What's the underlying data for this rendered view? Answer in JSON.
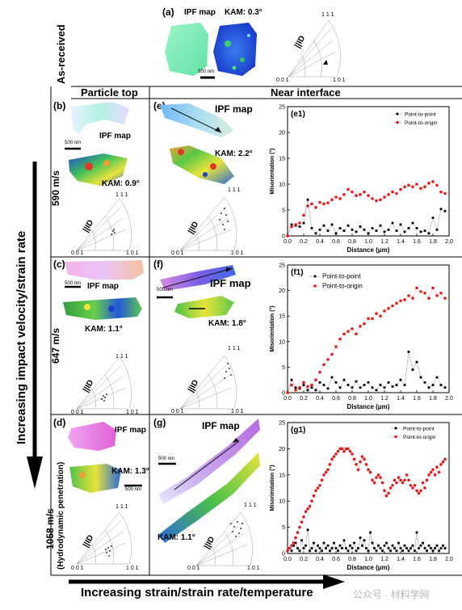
{
  "header": {
    "as_received": "As-received",
    "col_particle_top": "Particle top",
    "col_near_interface": "Near interface",
    "row_590": "590 m/s",
    "row_647": "647 m/s",
    "row_1058": "1058 m/s",
    "row_1058_sub": "(Hydrodynamic penetration)",
    "vertical_arrow": "Increasing impact velocity/strain rate",
    "bottom_arrow": "Increasing strain/strain rate/temperature",
    "watermark": "公众号 · 材料学网"
  },
  "panels": {
    "a": {
      "tag": "(a)",
      "ipf": "IPF map",
      "kam": "KAM: 0.3°",
      "scale": "500 nm"
    },
    "b": {
      "tag": "(b)",
      "ipf": "IPF map",
      "kam": "KAM: 0.9°",
      "scale": "500 nm"
    },
    "c": {
      "tag": "(c)",
      "ipf": "IPF map",
      "kam": "KAM: 1.1°",
      "scale": "500 nm"
    },
    "d": {
      "tag": "(d)",
      "ipf": "IPF map",
      "kam": "KAM: 1.3°",
      "scale": "500 nm"
    },
    "e": {
      "tag": "(e)",
      "ipf": "IPF map",
      "kam": "KAM: 2.2°"
    },
    "f": {
      "tag": "(f)",
      "ipf": "IPF map",
      "kam": "KAM: 1.8°",
      "scale": "500 nm"
    },
    "g": {
      "tag": "(g)",
      "ipf": "IPF map",
      "kam": "KAM: 1.1°",
      "scale": "500 nm"
    }
  },
  "pole": {
    "t111": "1 1 1",
    "t001": "0 0 1",
    "t101": "1 0 1",
    "id": "||ID"
  },
  "colors": {
    "point_to_point": "#000000",
    "point_to_origin": "#e21b1b"
  },
  "chart_data": [
    {
      "type": "scatter",
      "tag": "(e1)",
      "xlabel": "Distance (μm)",
      "ylabel": "Misorientation (°)",
      "xlim": [
        0,
        2.0
      ],
      "ylim": [
        0,
        25
      ],
      "xticks": [
        "0.0",
        "0.2",
        "0.4",
        "0.6",
        "0.8",
        "1.0",
        "1.2",
        "1.4",
        "1.6",
        "1.8",
        "2.0"
      ],
      "yticks": [
        "0",
        "5",
        "10",
        "15",
        "20",
        "25"
      ],
      "legend": "top-right",
      "series": [
        {
          "name": "Point-to-point",
          "x": [
            0.0,
            0.05,
            0.1,
            0.15,
            0.2,
            0.25,
            0.3,
            0.35,
            0.4,
            0.45,
            0.5,
            0.55,
            0.6,
            0.65,
            0.7,
            0.75,
            0.8,
            0.85,
            0.9,
            0.95,
            1.0,
            1.05,
            1.1,
            1.15,
            1.2,
            1.25,
            1.3,
            1.35,
            1.4,
            1.45,
            1.5,
            1.55,
            1.6,
            1.65,
            1.7,
            1.75,
            1.8,
            1.85,
            1.9,
            1.95
          ],
          "y": [
            0.0,
            2.2,
            2.0,
            1.8,
            2.5,
            7.0,
            1.5,
            0.5,
            1.2,
            2.0,
            1.0,
            2.2,
            0.5,
            1.5,
            1.0,
            2.0,
            1.2,
            0.8,
            1.8,
            1.2,
            0.5,
            1.5,
            1.0,
            2.0,
            0.8,
            1.2,
            2.5,
            1.0,
            2.2,
            0.8,
            1.5,
            2.5,
            1.5,
            0.8,
            1.0,
            0.5,
            3.5,
            1.2,
            5.2,
            4.8
          ]
        },
        {
          "name": "Point-to-origin",
          "x": [
            0.0,
            0.05,
            0.1,
            0.15,
            0.2,
            0.25,
            0.3,
            0.35,
            0.4,
            0.45,
            0.5,
            0.55,
            0.6,
            0.65,
            0.7,
            0.75,
            0.8,
            0.85,
            0.9,
            0.95,
            1.0,
            1.05,
            1.1,
            1.15,
            1.2,
            1.25,
            1.3,
            1.35,
            1.4,
            1.45,
            1.5,
            1.55,
            1.6,
            1.65,
            1.7,
            1.75,
            1.8,
            1.85,
            1.9,
            1.95
          ],
          "y": [
            0.0,
            1.8,
            2.2,
            2.5,
            4.0,
            5.8,
            6.2,
            5.5,
            6.5,
            6.2,
            6.4,
            7.0,
            7.5,
            7.2,
            8.0,
            9.0,
            8.5,
            7.8,
            8.0,
            8.5,
            7.8,
            7.2,
            6.8,
            7.0,
            7.5,
            8.0,
            8.5,
            8.2,
            9.0,
            9.5,
            9.8,
            9.5,
            10.0,
            9.2,
            9.5,
            10.2,
            10.5,
            9.8,
            8.5,
            8.2
          ]
        }
      ]
    },
    {
      "type": "scatter",
      "tag": "(f1)",
      "xlabel": "Distance (μm)",
      "ylabel": "Misorientation (°)",
      "xlim": [
        0,
        2.0
      ],
      "ylim": [
        0,
        25
      ],
      "xticks": [
        "0.0",
        "0.2",
        "0.4",
        "0.6",
        "0.8",
        "1.0",
        "1.2",
        "1.4",
        "1.6",
        "1.8",
        "2.0"
      ],
      "yticks": [
        "0",
        "5",
        "10",
        "15",
        "20",
        "25"
      ],
      "legend": "top-left",
      "series": [
        {
          "name": "Point-to-point",
          "x": [
            0.0,
            0.05,
            0.1,
            0.15,
            0.2,
            0.25,
            0.3,
            0.35,
            0.4,
            0.45,
            0.5,
            0.55,
            0.6,
            0.65,
            0.7,
            0.75,
            0.8,
            0.85,
            0.9,
            0.95,
            1.0,
            1.05,
            1.1,
            1.15,
            1.2,
            1.25,
            1.3,
            1.35,
            1.4,
            1.45,
            1.5,
            1.55,
            1.6,
            1.65,
            1.7,
            1.75,
            1.8,
            1.85,
            1.9,
            1.95
          ],
          "y": [
            0.0,
            2.5,
            1.0,
            0.8,
            1.5,
            0.5,
            1.0,
            0.5,
            2.0,
            1.5,
            0.8,
            3.0,
            2.0,
            1.0,
            2.5,
            1.5,
            1.0,
            2.2,
            1.0,
            1.5,
            2.0,
            1.0,
            0.5,
            1.5,
            1.0,
            2.0,
            1.2,
            1.5,
            2.5,
            1.5,
            8.0,
            4.5,
            6.0,
            3.0,
            2.0,
            1.0,
            1.5,
            3.0,
            1.5,
            1.0
          ]
        },
        {
          "name": "Point-to-origin",
          "x": [
            0.0,
            0.05,
            0.1,
            0.15,
            0.2,
            0.25,
            0.3,
            0.35,
            0.4,
            0.45,
            0.5,
            0.55,
            0.6,
            0.65,
            0.7,
            0.75,
            0.8,
            0.85,
            0.9,
            0.95,
            1.0,
            1.05,
            1.1,
            1.15,
            1.2,
            1.25,
            1.3,
            1.35,
            1.4,
            1.45,
            1.5,
            1.55,
            1.6,
            1.65,
            1.7,
            1.75,
            1.8,
            1.85,
            1.9,
            1.95
          ],
          "y": [
            0.0,
            1.5,
            0.5,
            1.0,
            2.0,
            1.2,
            1.5,
            2.5,
            4.0,
            5.5,
            6.5,
            7.5,
            9.0,
            10.5,
            11.5,
            12.0,
            12.5,
            11.5,
            13.0,
            13.5,
            14.5,
            14.5,
            15.5,
            15.0,
            16.0,
            16.5,
            17.0,
            17.5,
            18.0,
            18.2,
            19.0,
            18.5,
            20.5,
            19.8,
            19.5,
            18.5,
            20.5,
            19.0,
            19.5,
            18.5
          ]
        }
      ]
    },
    {
      "type": "scatter",
      "tag": "(g1)",
      "xlabel": "Distance (μm)",
      "ylabel": "Misorientation (°)",
      "xlim": [
        0,
        2.0
      ],
      "ylim": [
        0,
        25
      ],
      "xticks": [
        "0.0",
        "0.2",
        "0.4",
        "0.6",
        "0.8",
        "1.0",
        "1.2",
        "1.4",
        "1.6",
        "1.8",
        "2.0"
      ],
      "yticks": [
        "0",
        "5",
        "10",
        "15",
        "20",
        "25"
      ],
      "legend": "top-right",
      "series": [
        {
          "name": "Point-to-point",
          "x": [
            0.0,
            0.025,
            0.05,
            0.075,
            0.1,
            0.125,
            0.15,
            0.175,
            0.2,
            0.225,
            0.25,
            0.275,
            0.3,
            0.325,
            0.35,
            0.375,
            0.4,
            0.425,
            0.45,
            0.475,
            0.5,
            0.525,
            0.55,
            0.575,
            0.6,
            0.625,
            0.65,
            0.675,
            0.7,
            0.725,
            0.75,
            0.775,
            0.8,
            0.825,
            0.85,
            0.875,
            0.9,
            0.925,
            0.95,
            0.975,
            1.0,
            1.025,
            1.05,
            1.075,
            1.1,
            1.125,
            1.15,
            1.175,
            1.2,
            1.225,
            1.25,
            1.275,
            1.3,
            1.325,
            1.35,
            1.375,
            1.4,
            1.425,
            1.45,
            1.475,
            1.5,
            1.525,
            1.55,
            1.575,
            1.6,
            1.625,
            1.65,
            1.675,
            1.7,
            1.725,
            1.75,
            1.775,
            1.8,
            1.825,
            1.85,
            1.875,
            1.9,
            1.925,
            1.95
          ],
          "y": [
            0.5,
            1.0,
            0.5,
            1.5,
            2.0,
            1.0,
            0.5,
            2.5,
            1.0,
            1.5,
            4.5,
            0.5,
            1.0,
            2.0,
            0.5,
            1.5,
            1.0,
            0.5,
            2.0,
            1.0,
            1.5,
            0.5,
            1.0,
            2.0,
            1.0,
            0.5,
            1.5,
            1.0,
            2.5,
            1.0,
            0.5,
            1.5,
            1.0,
            2.0,
            0.5,
            1.0,
            3.0,
            1.5,
            2.5,
            1.0,
            0.5,
            4.0,
            2.0,
            1.0,
            0.5,
            1.5,
            1.0,
            0.5,
            1.5,
            2.0,
            1.0,
            0.5,
            1.5,
            1.0,
            0.5,
            2.0,
            1.0,
            0.5,
            1.5,
            1.0,
            0.5,
            1.0,
            1.5,
            0.5,
            4.0,
            1.0,
            1.5,
            2.0,
            1.0,
            0.5,
            1.5,
            1.0,
            0.5,
            1.0,
            1.5,
            0.5,
            1.0,
            1.5,
            1.0
          ]
        },
        {
          "name": "Point-to-origin",
          "x": [
            0.0,
            0.025,
            0.05,
            0.075,
            0.1,
            0.125,
            0.15,
            0.175,
            0.2,
            0.225,
            0.25,
            0.275,
            0.3,
            0.325,
            0.35,
            0.375,
            0.4,
            0.425,
            0.45,
            0.475,
            0.5,
            0.525,
            0.55,
            0.575,
            0.6,
            0.625,
            0.65,
            0.675,
            0.7,
            0.725,
            0.75,
            0.775,
            0.8,
            0.825,
            0.85,
            0.875,
            0.9,
            0.925,
            0.95,
            0.975,
            1.0,
            1.025,
            1.05,
            1.075,
            1.1,
            1.125,
            1.15,
            1.175,
            1.2,
            1.225,
            1.25,
            1.275,
            1.3,
            1.325,
            1.35,
            1.375,
            1.4,
            1.425,
            1.45,
            1.475,
            1.5,
            1.525,
            1.55,
            1.575,
            1.6,
            1.625,
            1.65,
            1.675,
            1.7,
            1.725,
            1.75,
            1.775,
            1.8,
            1.825,
            1.85,
            1.875,
            1.9,
            1.925,
            1.95
          ],
          "y": [
            0.5,
            1.0,
            1.5,
            2.0,
            3.0,
            4.0,
            5.0,
            6.0,
            7.0,
            8.0,
            8.5,
            9.0,
            10.0,
            11.0,
            12.0,
            12.5,
            13.0,
            14.0,
            15.0,
            15.5,
            16.0,
            17.0,
            18.0,
            18.5,
            19.0,
            19.5,
            20.0,
            20.0,
            19.5,
            20.0,
            20.0,
            19.5,
            19.0,
            18.0,
            17.0,
            16.0,
            17.5,
            18.5,
            18.0,
            17.0,
            16.0,
            15.5,
            14.0,
            13.5,
            14.5,
            15.0,
            14.5,
            13.5,
            12.0,
            11.0,
            11.5,
            12.5,
            13.0,
            14.0,
            13.5,
            14.5,
            14.0,
            13.5,
            14.0,
            15.0,
            14.0,
            13.0,
            12.5,
            13.0,
            12.0,
            11.5,
            12.0,
            13.5,
            12.5,
            14.0,
            15.0,
            15.5,
            16.0,
            15.0,
            16.5,
            15.5,
            17.0,
            17.5,
            18.0
          ]
        }
      ]
    }
  ]
}
